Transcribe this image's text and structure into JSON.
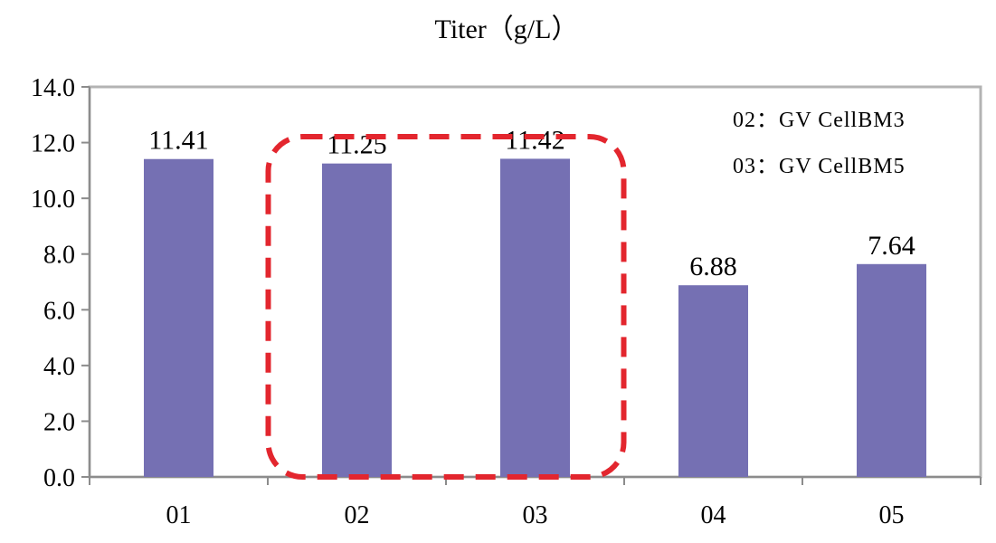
{
  "chart_data": {
    "type": "bar",
    "title": "Titer（g/L）",
    "categories": [
      "01",
      "02",
      "03",
      "04",
      "05"
    ],
    "values": [
      11.41,
      11.25,
      11.42,
      6.88,
      7.64
    ],
    "value_labels": [
      "11.41",
      "11.25",
      "11.42",
      "6.88",
      "7.64"
    ],
    "ylim": [
      0,
      14
    ],
    "yticks": [
      0,
      2,
      4,
      6,
      8,
      10,
      12,
      14
    ],
    "ytick_labels": [
      "0.0",
      "2.0",
      "4.0",
      "6.0",
      "8.0",
      "10.0",
      "12.0",
      "14.0"
    ],
    "grid": false,
    "bar_color": "#7570b3",
    "highlight": {
      "categories": [
        "02",
        "03"
      ],
      "style": "dashed-rounded-box",
      "color": "#e3262e"
    },
    "annotations": [
      "02：GV CellBM3",
      "03：GV CellBM5"
    ]
  }
}
